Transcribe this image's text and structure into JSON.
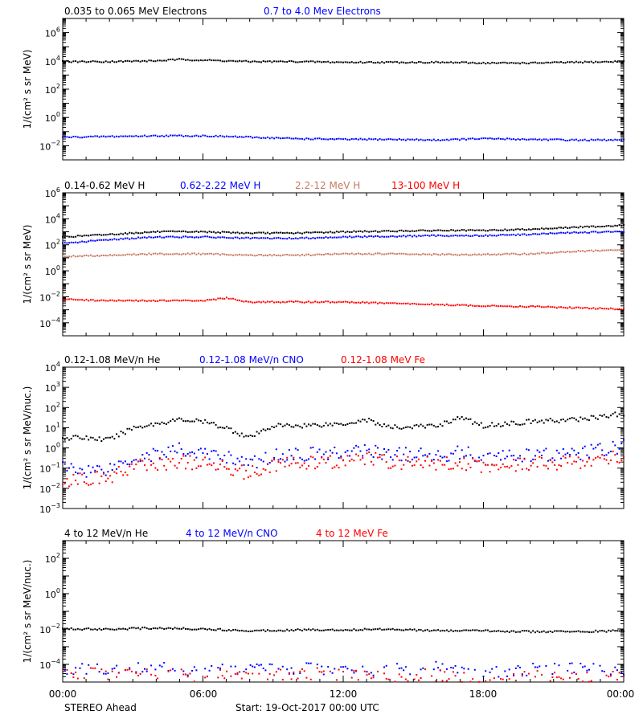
{
  "footer": {
    "spacecraft": "STEREO Ahead",
    "start": "Start: 19-Oct-2017 00:00 UTC"
  },
  "x_axis": {
    "tick_labels": [
      "00:00",
      "06:00",
      "12:00",
      "18:00",
      "00:00"
    ],
    "range_hours": [
      0,
      24
    ]
  },
  "colors": {
    "black": "#000000",
    "blue": "#0000ff",
    "brown": "#c87860",
    "red": "#ff0000"
  },
  "chart_data": [
    {
      "type": "scatter",
      "y_scale": "log",
      "ylabel": "1/(cm² s sr MeV)",
      "ylim_log10": [
        -3,
        7
      ],
      "y_ticks_log10": [
        -2,
        0,
        2,
        4,
        6
      ],
      "series": [
        {
          "name": "0.035 to 0.065 MeV Electrons",
          "color": "#000000",
          "x": [
            0,
            2,
            4,
            5,
            6,
            8,
            10,
            12,
            14,
            16,
            18,
            20,
            22,
            24
          ],
          "log10_y": [
            3.95,
            3.95,
            4.0,
            4.1,
            4.05,
            3.95,
            3.95,
            3.9,
            3.9,
            3.9,
            3.85,
            3.85,
            3.9,
            3.95
          ]
        },
        {
          "name": "0.7 to 4.0 Mev Electrons",
          "color": "#0000ff",
          "x": [
            0,
            2,
            4,
            6,
            8,
            10,
            12,
            14,
            16,
            18,
            20,
            22,
            24
          ],
          "log10_y": [
            -1.4,
            -1.35,
            -1.3,
            -1.3,
            -1.4,
            -1.5,
            -1.55,
            -1.55,
            -1.6,
            -1.5,
            -1.55,
            -1.6,
            -1.6
          ]
        }
      ]
    },
    {
      "type": "scatter",
      "y_scale": "log",
      "ylabel": "1/(cm² s sr MeV)",
      "ylim_log10": [
        -5,
        6
      ],
      "y_ticks_log10": [
        -4,
        -2,
        0,
        2,
        4,
        6
      ],
      "series": [
        {
          "name": "0.14-0.62 MeV H",
          "color": "#000000",
          "x": [
            0,
            2,
            4,
            6,
            8,
            10,
            12,
            14,
            16,
            18,
            20,
            22,
            24
          ],
          "log10_y": [
            2.6,
            2.8,
            3.0,
            3.0,
            2.9,
            2.9,
            3.0,
            3.05,
            3.1,
            3.1,
            3.2,
            3.35,
            3.5
          ]
        },
        {
          "name": "0.62-2.22 MeV H",
          "color": "#0000ff",
          "x": [
            0,
            2,
            4,
            6,
            8,
            10,
            12,
            14,
            16,
            18,
            20,
            22,
            24
          ],
          "log10_y": [
            2.1,
            2.4,
            2.6,
            2.6,
            2.5,
            2.5,
            2.6,
            2.65,
            2.7,
            2.7,
            2.8,
            2.95,
            3.0
          ]
        },
        {
          "name": "2.2-12 MeV H",
          "color": "#c87860",
          "x": [
            0,
            2,
            4,
            6,
            8,
            10,
            12,
            14,
            16,
            18,
            20,
            22,
            24
          ],
          "log10_y": [
            1.1,
            1.2,
            1.3,
            1.3,
            1.2,
            1.2,
            1.3,
            1.3,
            1.25,
            1.25,
            1.3,
            1.5,
            1.6
          ]
        },
        {
          "name": "13-100 MeV H",
          "color": "#ff0000",
          "x": [
            0,
            2,
            4,
            6,
            7,
            8,
            10,
            12,
            14,
            16,
            18,
            20,
            22,
            24
          ],
          "log10_y": [
            -2.2,
            -2.3,
            -2.3,
            -2.3,
            -2.1,
            -2.4,
            -2.4,
            -2.4,
            -2.5,
            -2.6,
            -2.7,
            -2.75,
            -2.85,
            -2.95
          ]
        }
      ]
    },
    {
      "type": "scatter",
      "y_scale": "log",
      "ylabel": "1/(cm² s sr MeV/nuc.)",
      "ylim_log10": [
        -3,
        4
      ],
      "y_ticks_log10": [
        -3,
        -2,
        -1,
        0,
        1,
        2,
        3,
        4
      ],
      "series": [
        {
          "name": "0.12-1.08 MeV/n He",
          "color": "#000000",
          "x": [
            0,
            1,
            2,
            3,
            4,
            5,
            6,
            7,
            8,
            9,
            10,
            12,
            13,
            14,
            16,
            17,
            18,
            20,
            22,
            24
          ],
          "log10_y": [
            0.5,
            0.5,
            0.4,
            1.0,
            1.2,
            1.4,
            1.3,
            1.0,
            0.5,
            1.1,
            1.1,
            1.2,
            1.4,
            1.0,
            1.1,
            1.5,
            1.1,
            1.3,
            1.4,
            1.7
          ]
        },
        {
          "name": "0.12-1.08 MeV/n CNO",
          "color": "#0000ff",
          "x": [
            0,
            1,
            2,
            3,
            4,
            5,
            6,
            7,
            8,
            9,
            10,
            12,
            13,
            14,
            16,
            17,
            18,
            20,
            22,
            24
          ],
          "log10_y": [
            -1.0,
            -1.1,
            -1.0,
            -0.5,
            -0.3,
            -0.1,
            -0.3,
            -0.4,
            -0.8,
            -0.4,
            -0.3,
            -0.3,
            -0.1,
            -0.3,
            -0.4,
            -0.2,
            -0.5,
            -0.4,
            -0.3,
            0.1
          ]
        },
        {
          "name": "0.12-1.08 MeV Fe",
          "color": "#ff0000",
          "x": [
            0,
            1,
            2,
            3,
            4,
            5,
            6,
            7,
            8,
            9,
            10,
            12,
            13,
            14,
            16,
            17,
            18,
            20,
            22,
            24
          ],
          "log10_y": [
            -1.6,
            -1.5,
            -1.5,
            -0.9,
            -0.8,
            -0.7,
            -0.8,
            -0.9,
            -1.3,
            -0.8,
            -0.8,
            -0.7,
            -0.5,
            -0.7,
            -0.8,
            -0.7,
            -0.9,
            -0.8,
            -0.7,
            -0.4
          ]
        }
      ]
    },
    {
      "type": "scatter",
      "y_scale": "log",
      "ylabel": "1/(cm² s sr MeV/nuc.)",
      "ylim_log10": [
        -5,
        3
      ],
      "y_ticks_log10": [
        -4,
        -2,
        0,
        2
      ],
      "series": [
        {
          "name": "4 to 12 MeV/n He",
          "color": "#000000",
          "x": [
            0,
            2,
            4,
            6,
            8,
            10,
            12,
            14,
            16,
            18,
            20,
            22,
            24
          ],
          "log10_y": [
            -2.0,
            -2.0,
            -1.95,
            -2.0,
            -2.1,
            -2.05,
            -2.05,
            -2.0,
            -2.1,
            -2.1,
            -2.15,
            -2.15,
            -2.1
          ]
        },
        {
          "name": "4 to 12 MeV/n CNO",
          "color": "#0000ff",
          "x": [
            0,
            2,
            4,
            6,
            8,
            10,
            12,
            14,
            16,
            18,
            20,
            22,
            24
          ],
          "log10_y": [
            -4.2,
            -4.3,
            -4.1,
            -4.4,
            -4.3,
            -4.2,
            -4.4,
            -4.3,
            -4.2,
            -4.4,
            -4.3,
            -4.2,
            -4.3
          ]
        },
        {
          "name": "4 to 12 MeV Fe",
          "color": "#ff0000",
          "x": [
            0,
            2,
            4,
            6,
            8,
            10,
            12,
            14,
            16,
            18,
            20,
            22,
            24
          ],
          "log10_y": [
            -4.4,
            -4.6,
            -4.5,
            -4.7,
            -4.6,
            -4.5,
            -4.6,
            -4.7,
            -4.6,
            -4.8,
            -4.7,
            -4.8,
            -4.7
          ]
        }
      ]
    }
  ]
}
